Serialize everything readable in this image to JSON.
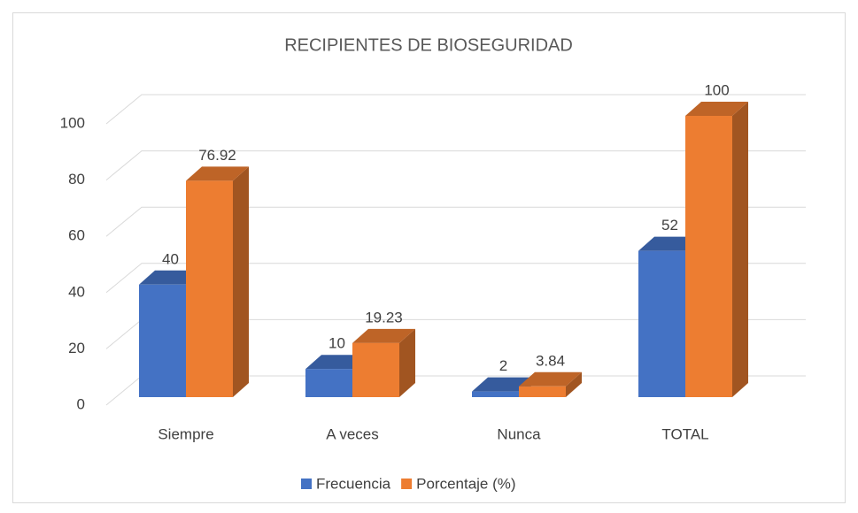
{
  "chart_data": {
    "type": "bar3d",
    "title": "RECIPIENTES DE BIOSEGURIDAD",
    "categories": [
      "Siempre",
      "A veces",
      "Nunca",
      "TOTAL"
    ],
    "series": [
      {
        "name": "Frecuencia",
        "color": "#4472c4",
        "values": [
          40,
          10,
          2,
          52
        ]
      },
      {
        "name": "Porcentaje (%)",
        "color": "#ed7d31",
        "values": [
          76.92,
          19.23,
          3.84,
          100
        ]
      }
    ],
    "ylim": [
      0,
      100
    ],
    "yticks": [
      0,
      20,
      40,
      60,
      80,
      100
    ],
    "grid": true,
    "legend": "bottom"
  }
}
